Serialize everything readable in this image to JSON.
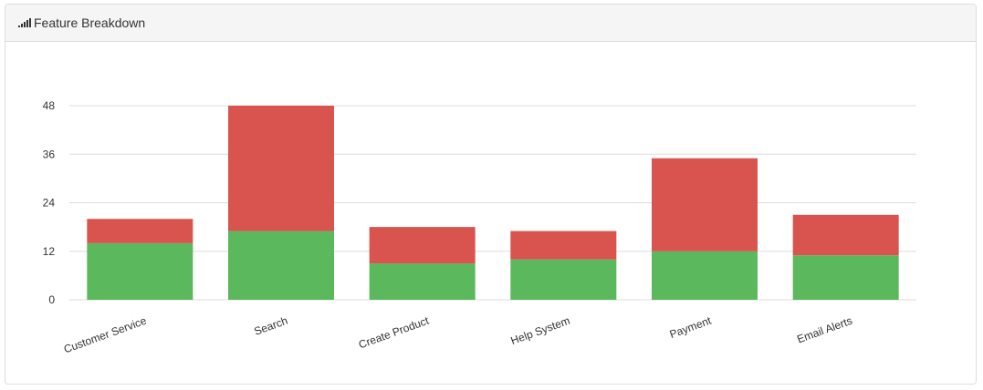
{
  "panel": {
    "title": "Feature Breakdown",
    "icon": "signal-bars-icon"
  },
  "colors": {
    "green": "#5cb85c",
    "red": "#d9534f",
    "grid": "#dddddd",
    "text": "#333333"
  },
  "chart_data": {
    "type": "bar",
    "stacked": true,
    "title": "",
    "xlabel": "",
    "ylabel": "",
    "categories": [
      "Customer Service",
      "Search",
      "Create Product",
      "Help System",
      "Payment",
      "Email Alerts"
    ],
    "series": [
      {
        "color": "#5cb85c",
        "values": [
          14,
          17,
          9,
          10,
          12,
          11
        ]
      },
      {
        "color": "#d9534f",
        "values": [
          6,
          31,
          9,
          7,
          23,
          10
        ]
      }
    ],
    "ylim": [
      0,
      48
    ],
    "yticks": [
      0,
      12,
      24,
      36,
      48
    ],
    "grid": true,
    "legend": "none"
  }
}
